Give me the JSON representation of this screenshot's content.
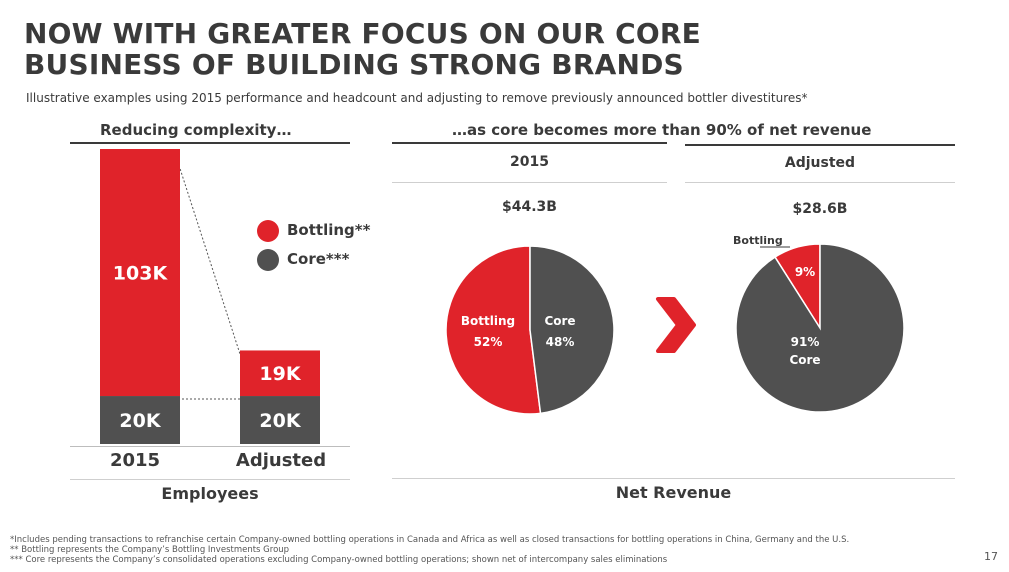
{
  "title_line1": "NOW WITH GREATER FOCUS ON OUR CORE",
  "title_line2": "BUSINESS OF BUILDING STRONG BRANDS",
  "subtitle": "Illustrative examples using 2015 performance and headcount and adjusting to remove previously announced bottler divestitures*",
  "left_header": "Reducing complexity…",
  "right_header": "…as core becomes more than 90% of net revenue",
  "legend": {
    "bottling": "Bottling**",
    "core": "Core***"
  },
  "colors": {
    "bottling": "#e0232a",
    "core": "#505050",
    "text": "#3a3a3a"
  },
  "chart_data": [
    {
      "type": "bar",
      "title": "Employees",
      "categories": [
        "2015",
        "Adjusted"
      ],
      "series": [
        {
          "name": "Core***",
          "values": [
            20,
            20
          ],
          "labels": [
            "20K",
            "20K"
          ]
        },
        {
          "name": "Bottling**",
          "values": [
            103,
            19
          ],
          "labels": [
            "103K",
            "19K"
          ]
        }
      ],
      "unit": "K employees",
      "stacked": true
    },
    {
      "type": "pie",
      "title": "2015",
      "total_label": "$44.3B",
      "slices": [
        {
          "name": "Bottling",
          "value": 52,
          "label": "52%"
        },
        {
          "name": "Core",
          "value": 48,
          "label": "48%"
        }
      ]
    },
    {
      "type": "pie",
      "title": "Adjusted",
      "total_label": "$28.6B",
      "slices": [
        {
          "name": "Bottling",
          "value": 9,
          "label": "9%"
        },
        {
          "name": "Core",
          "value": 91,
          "label": "91%"
        }
      ]
    }
  ],
  "net_revenue_label": "Net Revenue",
  "footnotes": [
    "*Includes pending transactions to refranchise certain Company-owned bottling operations in Canada and Africa as well as closed transactions for bottling operations in China, Germany and the U.S.",
    "** Bottling represents the Company’s Bottling Investments Group",
    "*** Core represents the Company’s consolidated operations excluding Company-owned bottling operations; shown net of intercompany sales eliminations"
  ],
  "page_number": "17"
}
